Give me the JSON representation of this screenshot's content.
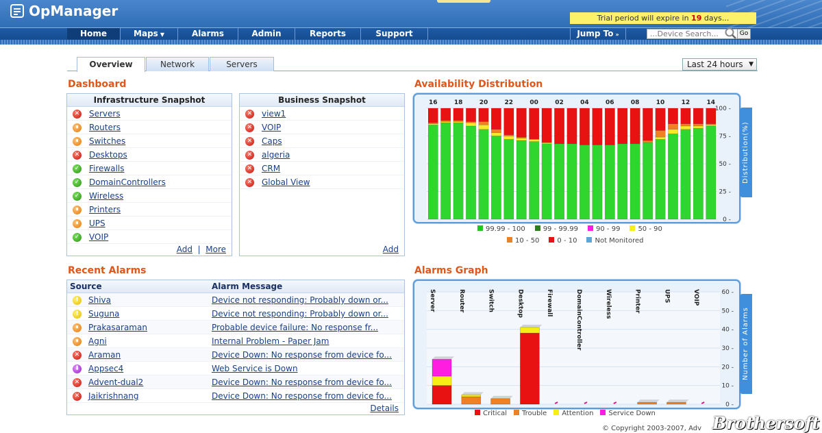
{
  "app": {
    "title": "OpManager",
    "trial_prefix": "Trial period will expire in",
    "trial_days": "19",
    "trial_suffix": "days..."
  },
  "nav": {
    "items": [
      {
        "label": "Home"
      },
      {
        "label": "Maps"
      },
      {
        "label": "Alarms"
      },
      {
        "label": "Admin"
      },
      {
        "label": "Reports"
      },
      {
        "label": "Support"
      }
    ],
    "jump_label": "Jump To",
    "search_placeholder": "...Device Search...",
    "go_label": "Go"
  },
  "tabs": [
    {
      "label": "Overview"
    },
    {
      "label": "Network"
    },
    {
      "label": "Servers"
    }
  ],
  "time_range": {
    "selected": "Last 24 hours"
  },
  "dashboard": {
    "title": "Dashboard",
    "infra": {
      "title": "Infrastructure Snapshot",
      "items": [
        {
          "label": "Servers",
          "status": "red"
        },
        {
          "label": "Routers",
          "status": "orange"
        },
        {
          "label": "Switches",
          "status": "orange"
        },
        {
          "label": "Desktops",
          "status": "red"
        },
        {
          "label": "Firewalls",
          "status": "green"
        },
        {
          "label": "DomainControllers",
          "status": "green"
        },
        {
          "label": "Wireless",
          "status": "green"
        },
        {
          "label": "Printers",
          "status": "orange"
        },
        {
          "label": "UPS",
          "status": "orange"
        },
        {
          "label": "VOIP",
          "status": "green"
        }
      ],
      "add_label": "Add",
      "more_label": "More"
    },
    "business": {
      "title": "Business Snapshot",
      "items": [
        {
          "label": "view1",
          "status": "red"
        },
        {
          "label": "VOIP",
          "status": "red"
        },
        {
          "label": "Caps",
          "status": "red"
        },
        {
          "label": "algeria",
          "status": "red"
        },
        {
          "label": "CRM",
          "status": "red"
        },
        {
          "label": "Global View",
          "status": "red"
        }
      ],
      "add_label": "Add"
    }
  },
  "alarms": {
    "title": "Recent Alarms",
    "col_source": "Source",
    "col_message": "Alarm Message",
    "details_label": "Details",
    "rows": [
      {
        "source": "Shiva",
        "message": "Device not responding: Probably down or...",
        "severity": "yellow"
      },
      {
        "source": "Suguna",
        "message": "Device not responding: Probably down or...",
        "severity": "yellow"
      },
      {
        "source": "Prakasaraman",
        "message": "Probable device failure: No response fr...",
        "severity": "orange"
      },
      {
        "source": "Agni",
        "message": "Internal Problem - Paper Jam",
        "severity": "orange"
      },
      {
        "source": "Araman",
        "message": "Device Down: No response from device fo...",
        "severity": "red"
      },
      {
        "source": "Appsec4",
        "message": "Web Service is Down",
        "severity": "purple"
      },
      {
        "source": "Advent-dual2",
        "message": "Device Down: No response from device fo...",
        "severity": "red"
      },
      {
        "source": "Jaikrishnang",
        "message": "Device Down: No response from device fo...",
        "severity": "red"
      }
    ]
  },
  "chart_data": [
    {
      "type": "bar",
      "stacked": true,
      "title": "Availability Distribution",
      "ylabel": "Distribution(%)",
      "ylim": [
        0,
        100
      ],
      "yticks": [
        0,
        25,
        50,
        75,
        100
      ],
      "xtick_labels": [
        "16",
        "18",
        "20",
        "22",
        "00",
        "02",
        "04",
        "06",
        "08",
        "10",
        "12",
        "14"
      ],
      "series": [
        {
          "name": "99.99 - 100",
          "color": "#2ed62e",
          "values": [
            85,
            87,
            87,
            84,
            81,
            75,
            72,
            71,
            70,
            68,
            68,
            68,
            67,
            67,
            67,
            68,
            68,
            69,
            72,
            77,
            81,
            82,
            84
          ]
        },
        {
          "name": "50 - 90",
          "color": "#f7e82a",
          "values": [
            1,
            1,
            1,
            3,
            4,
            3,
            3,
            2,
            2,
            1,
            0,
            0,
            0,
            0,
            0,
            0,
            0,
            0,
            2,
            4,
            3,
            2,
            1
          ]
        },
        {
          "name": "10 - 50",
          "color": "#f08020",
          "values": [
            1,
            1,
            1,
            1,
            3,
            3,
            1,
            1,
            0,
            0,
            0,
            0,
            0,
            0,
            0,
            0,
            0,
            2,
            6,
            5,
            2,
            2,
            1
          ]
        },
        {
          "name": "0 - 10",
          "color": "#e81212",
          "values": [
            13,
            11,
            11,
            12,
            12,
            19,
            24,
            26,
            28,
            31,
            32,
            32,
            33,
            33,
            33,
            32,
            32,
            29,
            20,
            14,
            14,
            14,
            14
          ]
        }
      ],
      "legend": [
        "99.99 - 100",
        "99 - 99.99",
        "90 - 99",
        "50 - 90",
        "10 - 50",
        "0 - 10",
        "Not Monitored"
      ],
      "legend_colors": [
        "#22c622",
        "#2e7d1f",
        "#ff1ee0",
        "#f7ee16",
        "#f08020",
        "#e81212",
        "#5aa7dc"
      ]
    },
    {
      "type": "bar",
      "stacked": true,
      "title": "Alarms Graph",
      "ylabel": "Number of Alarms",
      "ylim": [
        0,
        60
      ],
      "yticks": [
        0,
        10,
        20,
        30,
        40,
        50,
        60
      ],
      "categories": [
        "Server",
        "Router",
        "Switch",
        "Desktop",
        "Firewall",
        "DomainController",
        "Wireless",
        "Printer",
        "UPS",
        "VOIP"
      ],
      "series": [
        {
          "name": "Critical",
          "color": "#e81212",
          "values": [
            10,
            0,
            0,
            38,
            0,
            0,
            0,
            0,
            0,
            0
          ]
        },
        {
          "name": "Trouble",
          "color": "#f08020",
          "values": [
            0,
            4,
            3,
            0,
            0,
            0,
            0,
            1,
            1,
            0
          ]
        },
        {
          "name": "Attention",
          "color": "#f7ee16",
          "values": [
            5,
            1,
            0,
            3,
            0,
            0,
            0,
            0,
            0,
            0
          ]
        },
        {
          "name": "Service Down",
          "color": "#ff1ee0",
          "values": [
            9,
            0,
            0,
            0,
            0,
            0,
            0,
            0,
            0,
            0
          ]
        }
      ]
    }
  ],
  "footer": {
    "copyright": "© Copyright 2003-2007, Adv",
    "watermark": "Brothersoft"
  }
}
